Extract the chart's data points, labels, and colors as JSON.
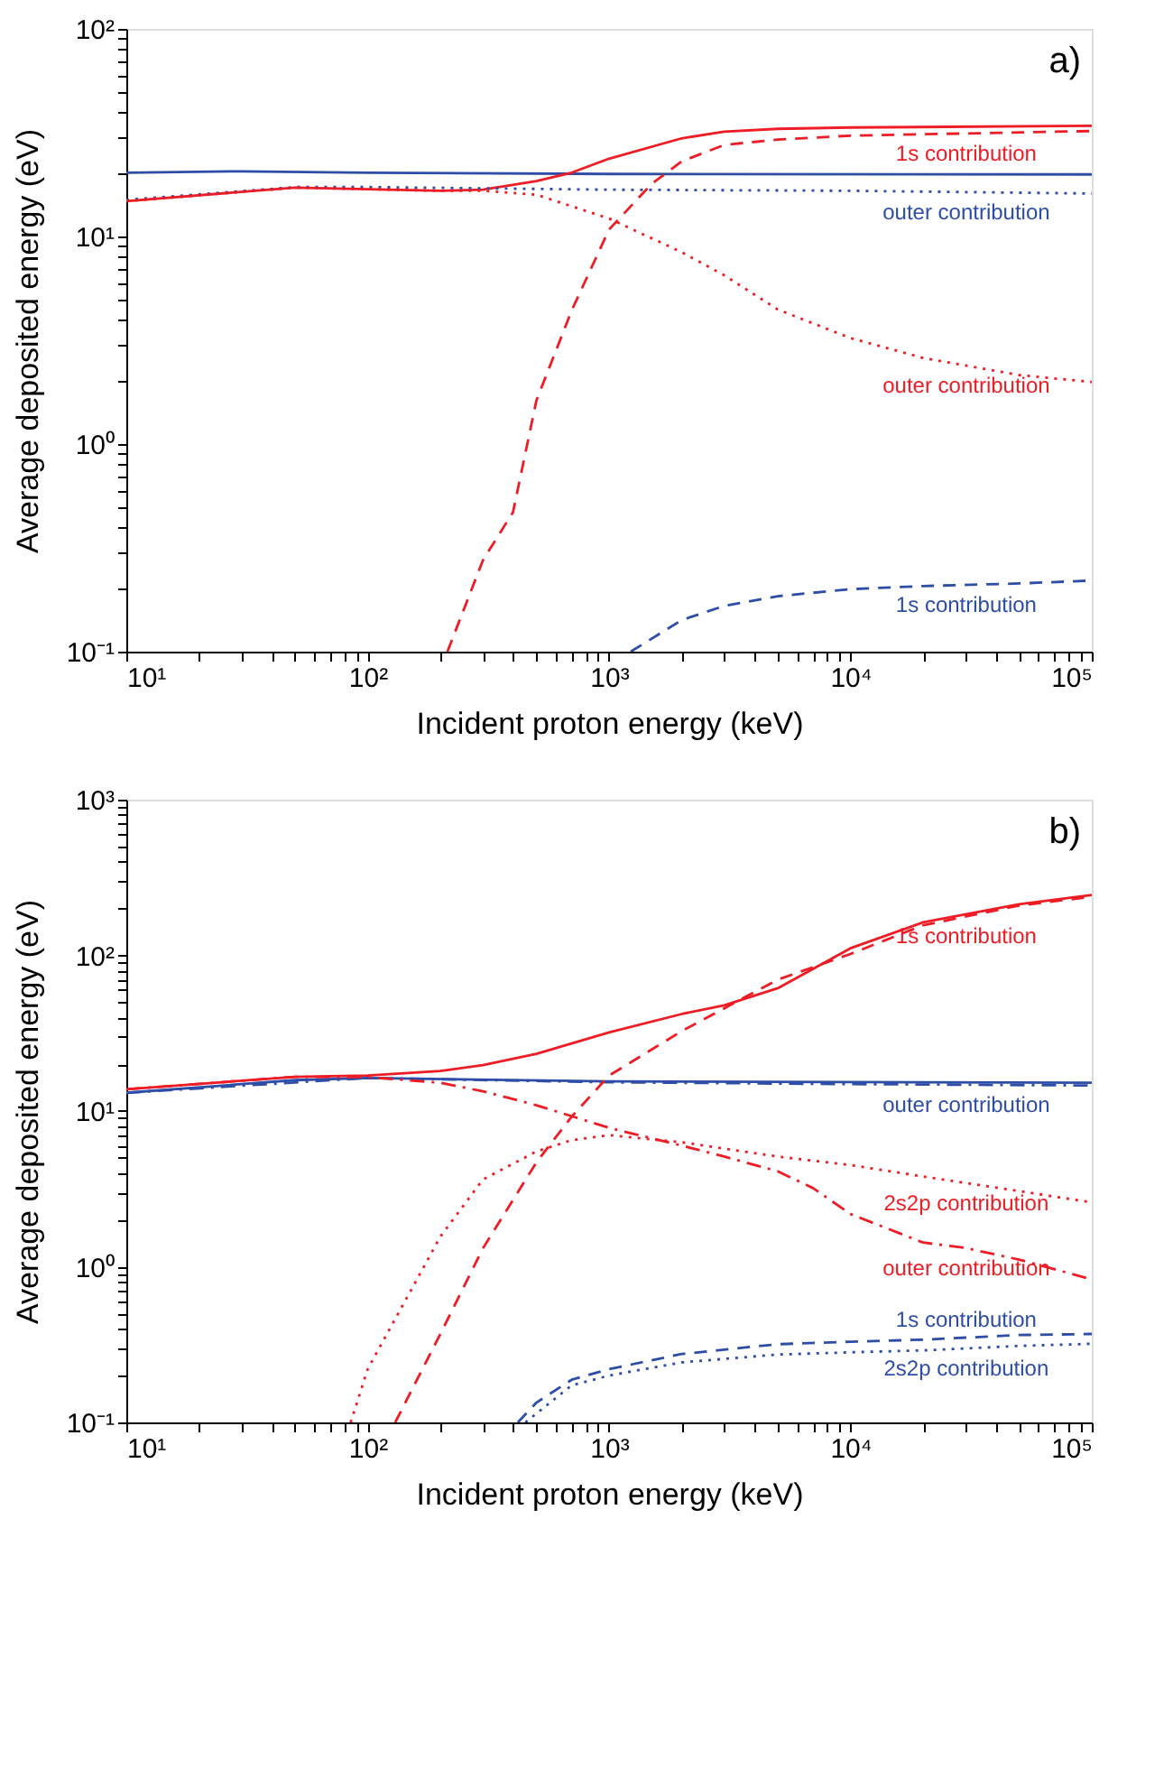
{
  "chart_data": [
    {
      "type": "line",
      "log": "xy",
      "xlabel": "Incident proton energy (keV)",
      "ylabel": "Average deposited energy (eV)",
      "annotations": [
        "a)"
      ],
      "xlim": [
        10,
        100000
      ],
      "ylim": [
        0.1,
        100
      ],
      "xticks": [
        {
          "value": 10,
          "label": "10¹"
        },
        {
          "value": 20,
          "label": null
        },
        {
          "value": 30,
          "label": null
        },
        {
          "value": 40,
          "label": null
        },
        {
          "value": 50,
          "label": null
        },
        {
          "value": 60,
          "label": null
        },
        {
          "value": 70,
          "label": null
        },
        {
          "value": 80,
          "label": null
        },
        {
          "value": 90,
          "label": null
        },
        {
          "value": 100,
          "label": "10²"
        },
        {
          "value": 200,
          "label": null
        },
        {
          "value": 300,
          "label": null
        },
        {
          "value": 400,
          "label": null
        },
        {
          "value": 500,
          "label": null
        },
        {
          "value": 600,
          "label": null
        },
        {
          "value": 700,
          "label": null
        },
        {
          "value": 800,
          "label": null
        },
        {
          "value": 900,
          "label": null
        },
        {
          "value": 1000,
          "label": "10³"
        },
        {
          "value": 2000,
          "label": null
        },
        {
          "value": 3000,
          "label": null
        },
        {
          "value": 4000,
          "label": null
        },
        {
          "value": 5000,
          "label": null
        },
        {
          "value": 6000,
          "label": null
        },
        {
          "value": 7000,
          "label": null
        },
        {
          "value": 8000,
          "label": null
        },
        {
          "value": 9000,
          "label": null
        },
        {
          "value": 10000,
          "label": "10⁴"
        },
        {
          "value": 20000,
          "label": null
        },
        {
          "value": 30000,
          "label": null
        },
        {
          "value": 40000,
          "label": null
        },
        {
          "value": 50000,
          "label": null
        },
        {
          "value": 60000,
          "label": null
        },
        {
          "value": 70000,
          "label": null
        },
        {
          "value": 80000,
          "label": null
        },
        {
          "value": 90000,
          "label": null
        },
        {
          "value": 100000,
          "label": "10⁵"
        }
      ],
      "yticks": [
        {
          "value": 0.1,
          "label": "10⁻¹"
        },
        {
          "value": 0.2,
          "label": null
        },
        {
          "value": 0.3,
          "label": null
        },
        {
          "value": 0.4,
          "label": null
        },
        {
          "value": 0.5,
          "label": null
        },
        {
          "value": 0.6,
          "label": null
        },
        {
          "value": 0.7,
          "label": null
        },
        {
          "value": 0.8,
          "label": null
        },
        {
          "value": 0.9,
          "label": null
        },
        {
          "value": 1,
          "label": "10⁰"
        },
        {
          "value": 2,
          "label": null
        },
        {
          "value": 3,
          "label": null
        },
        {
          "value": 4,
          "label": null
        },
        {
          "value": 5,
          "label": null
        },
        {
          "value": 6,
          "label": null
        },
        {
          "value": 7,
          "label": null
        },
        {
          "value": 8,
          "label": null
        },
        {
          "value": 9,
          "label": null
        },
        {
          "value": 10,
          "label": "10¹"
        },
        {
          "value": 20,
          "label": null
        },
        {
          "value": 30,
          "label": null
        },
        {
          "value": 40,
          "label": null
        },
        {
          "value": 50,
          "label": null
        },
        {
          "value": 60,
          "label": null
        },
        {
          "value": 70,
          "label": null
        },
        {
          "value": 80,
          "label": null
        },
        {
          "value": 90,
          "label": null
        },
        {
          "value": 100,
          "label": "10²"
        }
      ],
      "series": [
        {
          "color": "#2e4da6",
          "line_style": "solid",
          "x": [
            10,
            30,
            100,
            1000,
            100000
          ],
          "values": [
            20.3,
            20.6,
            20.3,
            20.0,
            19.9
          ]
        },
        {
          "color": "#ee1c25",
          "line_style": "solid",
          "x": [
            10,
            50,
            200,
            300,
            500,
            700,
            1000,
            2000,
            3000,
            5000,
            10000,
            100000
          ],
          "values": [
            14.8,
            17.2,
            16.6,
            16.8,
            18.5,
            20.3,
            23.7,
            29.7,
            32,
            33,
            33.5,
            34.1
          ]
        },
        {
          "name": "outer contribution",
          "color": "#2e4da6",
          "line_style": "dotted",
          "x": [
            10,
            50,
            100,
            1000,
            10000,
            100000
          ],
          "values": [
            15,
            17.3,
            17.3,
            16.8,
            16.6,
            16.1
          ]
        },
        {
          "name": "outer contribution",
          "color": "#ee1c25",
          "line_style": "dotted",
          "x": [
            10,
            50,
            200,
            300,
            500,
            1000,
            2000,
            3000,
            5000,
            10000,
            20000,
            50000,
            100000
          ],
          "values": [
            14.8,
            17.2,
            16.6,
            16.6,
            15.9,
            12.2,
            8.4,
            6.5,
            4.45,
            3.24,
            2.6,
            2.15,
            1.99
          ]
        },
        {
          "name": "1s contribution",
          "color": "#ee1c25",
          "line_style": "dashed",
          "x": [
            214,
            300,
            400,
            500,
            700,
            1000,
            1500,
            2000,
            3000,
            5000,
            10000,
            100000
          ],
          "values": [
            0.1,
            0.275,
            0.47,
            1.62,
            4.4,
            10.8,
            17.9,
            23,
            27.6,
            29.3,
            30.6,
            32.2
          ]
        },
        {
          "name": "1s contribution",
          "color": "#2e4da6",
          "line_style": "dashed",
          "x": [
            1230,
            2000,
            3000,
            5000,
            10000,
            20000,
            50000,
            100000
          ],
          "values": [
            0.1,
            0.142,
            0.166,
            0.185,
            0.2,
            0.207,
            0.213,
            0.22
          ]
        }
      ]
    },
    {
      "type": "line",
      "log": "xy",
      "xlabel": "Incident proton energy (keV)",
      "ylabel": "Average deposited energy (eV)",
      "annotations": [
        "b)"
      ],
      "xlim": [
        10,
        100000
      ],
      "ylim": [
        0.1,
        1000
      ],
      "xticks": [
        {
          "value": 10,
          "label": "10¹"
        },
        {
          "value": 20,
          "label": null
        },
        {
          "value": 30,
          "label": null
        },
        {
          "value": 40,
          "label": null
        },
        {
          "value": 50,
          "label": null
        },
        {
          "value": 60,
          "label": null
        },
        {
          "value": 70,
          "label": null
        },
        {
          "value": 80,
          "label": null
        },
        {
          "value": 90,
          "label": null
        },
        {
          "value": 100,
          "label": "10²"
        },
        {
          "value": 200,
          "label": null
        },
        {
          "value": 300,
          "label": null
        },
        {
          "value": 400,
          "label": null
        },
        {
          "value": 500,
          "label": null
        },
        {
          "value": 600,
          "label": null
        },
        {
          "value": 700,
          "label": null
        },
        {
          "value": 800,
          "label": null
        },
        {
          "value": 900,
          "label": null
        },
        {
          "value": 1000,
          "label": "10³"
        },
        {
          "value": 2000,
          "label": null
        },
        {
          "value": 3000,
          "label": null
        },
        {
          "value": 4000,
          "label": null
        },
        {
          "value": 5000,
          "label": null
        },
        {
          "value": 6000,
          "label": null
        },
        {
          "value": 7000,
          "label": null
        },
        {
          "value": 8000,
          "label": null
        },
        {
          "value": 9000,
          "label": null
        },
        {
          "value": 10000,
          "label": "10⁴"
        },
        {
          "value": 20000,
          "label": null
        },
        {
          "value": 30000,
          "label": null
        },
        {
          "value": 40000,
          "label": null
        },
        {
          "value": 50000,
          "label": null
        },
        {
          "value": 60000,
          "label": null
        },
        {
          "value": 70000,
          "label": null
        },
        {
          "value": 80000,
          "label": null
        },
        {
          "value": 90000,
          "label": null
        },
        {
          "value": 100000,
          "label": "10⁵"
        }
      ],
      "yticks": [
        {
          "value": 0.1,
          "label": "10⁻¹"
        },
        {
          "value": 0.2,
          "label": null
        },
        {
          "value": 0.3,
          "label": null
        },
        {
          "value": 0.4,
          "label": null
        },
        {
          "value": 0.5,
          "label": null
        },
        {
          "value": 0.6,
          "label": null
        },
        {
          "value": 0.7,
          "label": null
        },
        {
          "value": 0.8,
          "label": null
        },
        {
          "value": 0.9,
          "label": null
        },
        {
          "value": 1,
          "label": "10⁰"
        },
        {
          "value": 2,
          "label": null
        },
        {
          "value": 3,
          "label": null
        },
        {
          "value": 4,
          "label": null
        },
        {
          "value": 5,
          "label": null
        },
        {
          "value": 6,
          "label": null
        },
        {
          "value": 7,
          "label": null
        },
        {
          "value": 8,
          "label": null
        },
        {
          "value": 9,
          "label": null
        },
        {
          "value": 10,
          "label": "10¹"
        },
        {
          "value": 20,
          "label": null
        },
        {
          "value": 30,
          "label": null
        },
        {
          "value": 40,
          "label": null
        },
        {
          "value": 50,
          "label": null
        },
        {
          "value": 60,
          "label": null
        },
        {
          "value": 70,
          "label": null
        },
        {
          "value": 80,
          "label": null
        },
        {
          "value": 90,
          "label": null
        },
        {
          "value": 100,
          "label": "10²"
        },
        {
          "value": 200,
          "label": null
        },
        {
          "value": 300,
          "label": null
        },
        {
          "value": 400,
          "label": null
        },
        {
          "value": 500,
          "label": null
        },
        {
          "value": 600,
          "label": null
        },
        {
          "value": 700,
          "label": null
        },
        {
          "value": 800,
          "label": null
        },
        {
          "value": 900,
          "label": null
        },
        {
          "value": 1000,
          "label": "10³"
        }
      ],
      "series": [
        {
          "color": "#2e4da6",
          "line_style": "solid",
          "x": [
            10,
            50,
            100,
            1000,
            100000
          ],
          "values": [
            13.1,
            15.8,
            16.3,
            15.5,
            15.2
          ]
        },
        {
          "color": "#ee1c25",
          "line_style": "solid",
          "x": [
            10,
            50,
            100,
            200,
            300,
            500,
            1000,
            2000,
            3000,
            5000,
            10000,
            20000,
            50000,
            100000
          ],
          "values": [
            13.8,
            16.6,
            16.9,
            18.1,
            19.7,
            23.3,
            32,
            42,
            47.8,
            61.5,
            111,
            163,
            213,
            244
          ]
        },
        {
          "name": "outer contribution",
          "color": "#2e4da6",
          "line_style": "dashdot",
          "x": [
            10,
            100,
            1000,
            10000,
            100000
          ],
          "values": [
            13.1,
            16.3,
            15.3,
            14.9,
            14.6
          ]
        },
        {
          "name": "1s contribution",
          "color": "#ee1c25",
          "line_style": "dashed",
          "x": [
            130,
            200,
            300,
            500,
            700,
            1000,
            2000,
            3000,
            5000,
            10000,
            20000,
            50000,
            100000
          ],
          "values": [
            0.1,
            0.37,
            1.31,
            4.68,
            9.2,
            16.9,
            32.6,
            45.7,
            69.8,
            102,
            156,
            209,
            238
          ]
        },
        {
          "name": "2s2p contribution",
          "color": "#ee1c25",
          "line_style": "dotted",
          "x": [
            85,
            100,
            200,
            300,
            500,
            700,
            1000,
            2000,
            5000,
            10000,
            20000,
            50000,
            100000
          ],
          "values": [
            0.1,
            0.22,
            1.56,
            3.63,
            5.5,
            6.5,
            7.0,
            6.3,
            5.1,
            4.5,
            3.8,
            3.06,
            2.59
          ]
        },
        {
          "name": "outer contribution",
          "color": "#ee1c25",
          "line_style": "dashdot",
          "x": [
            10,
            50,
            100,
            200,
            300,
            500,
            1000,
            2000,
            3000,
            5000,
            7000,
            10000,
            20000,
            30000,
            50000,
            100000
          ],
          "values": [
            13.8,
            16.6,
            16.5,
            15.2,
            13.4,
            10.9,
            7.8,
            6.0,
            5.1,
            4.1,
            3.2,
            2.18,
            1.43,
            1.32,
            1.11,
            0.83
          ]
        },
        {
          "name": "1s contribution",
          "color": "#2e4da6",
          "line_style": "dashed",
          "x": [
            419,
            500,
            700,
            1000,
            2000,
            5000,
            10000,
            20000,
            50000,
            100000
          ],
          "values": [
            0.1,
            0.134,
            0.188,
            0.22,
            0.275,
            0.318,
            0.33,
            0.34,
            0.364,
            0.37
          ]
        },
        {
          "name": "2s2p contribution",
          "color": "#2e4da6",
          "line_style": "dotted",
          "x": [
            450,
            700,
            1000,
            2000,
            5000,
            10000,
            20000,
            50000,
            100000
          ],
          "values": [
            0.1,
            0.173,
            0.2,
            0.243,
            0.273,
            0.282,
            0.29,
            0.31,
            0.32
          ]
        }
      ]
    }
  ]
}
